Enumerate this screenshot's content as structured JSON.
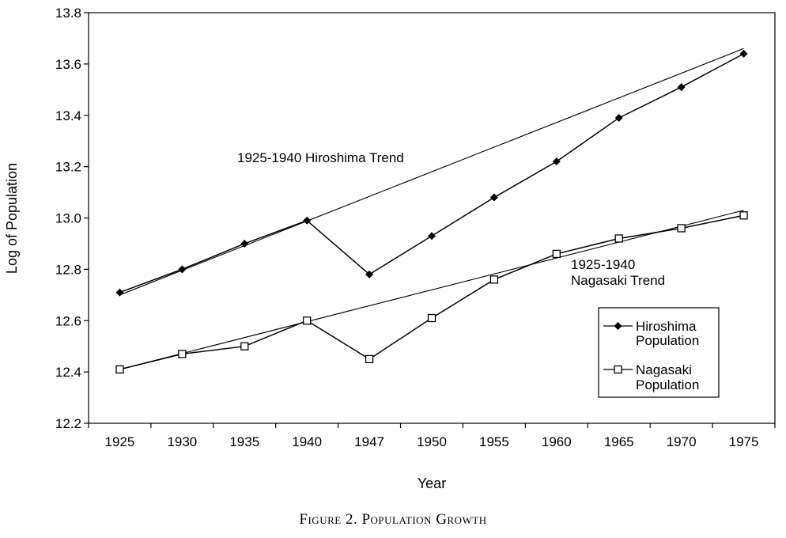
{
  "chart_data": {
    "type": "line",
    "xlabel": "Year",
    "ylabel": "Log of Population",
    "categories": [
      "1925",
      "1930",
      "1935",
      "1940",
      "1947",
      "1950",
      "1955",
      "1960",
      "1965",
      "1970",
      "1975"
    ],
    "ylim": [
      12.2,
      13.8
    ],
    "yticks": [
      "12.2",
      "12.4",
      "12.6",
      "12.8",
      "13.0",
      "13.2",
      "13.4",
      "13.6",
      "13.8"
    ],
    "grid": false,
    "legend_position": "bottom-right",
    "series": [
      {
        "name": "Hiroshima Population",
        "marker": "filled-diamond",
        "values": [
          12.71,
          12.8,
          12.9,
          12.99,
          12.78,
          12.93,
          13.08,
          13.22,
          13.39,
          13.51,
          13.64
        ]
      },
      {
        "name": "Nagasaki Population",
        "marker": "open-square",
        "values": [
          12.41,
          12.47,
          12.5,
          12.6,
          12.45,
          12.61,
          12.76,
          12.86,
          12.92,
          12.96,
          13.01
        ]
      }
    ],
    "trends": [
      {
        "label": "1925-1940 Hiroshima Trend",
        "from": 12.7,
        "to": 13.66
      },
      {
        "label_lines": [
          "1925-1940",
          "Nagasaki Trend"
        ],
        "from": 12.41,
        "to": 13.03
      }
    ]
  },
  "caption": "Figure 2. Population Growth"
}
